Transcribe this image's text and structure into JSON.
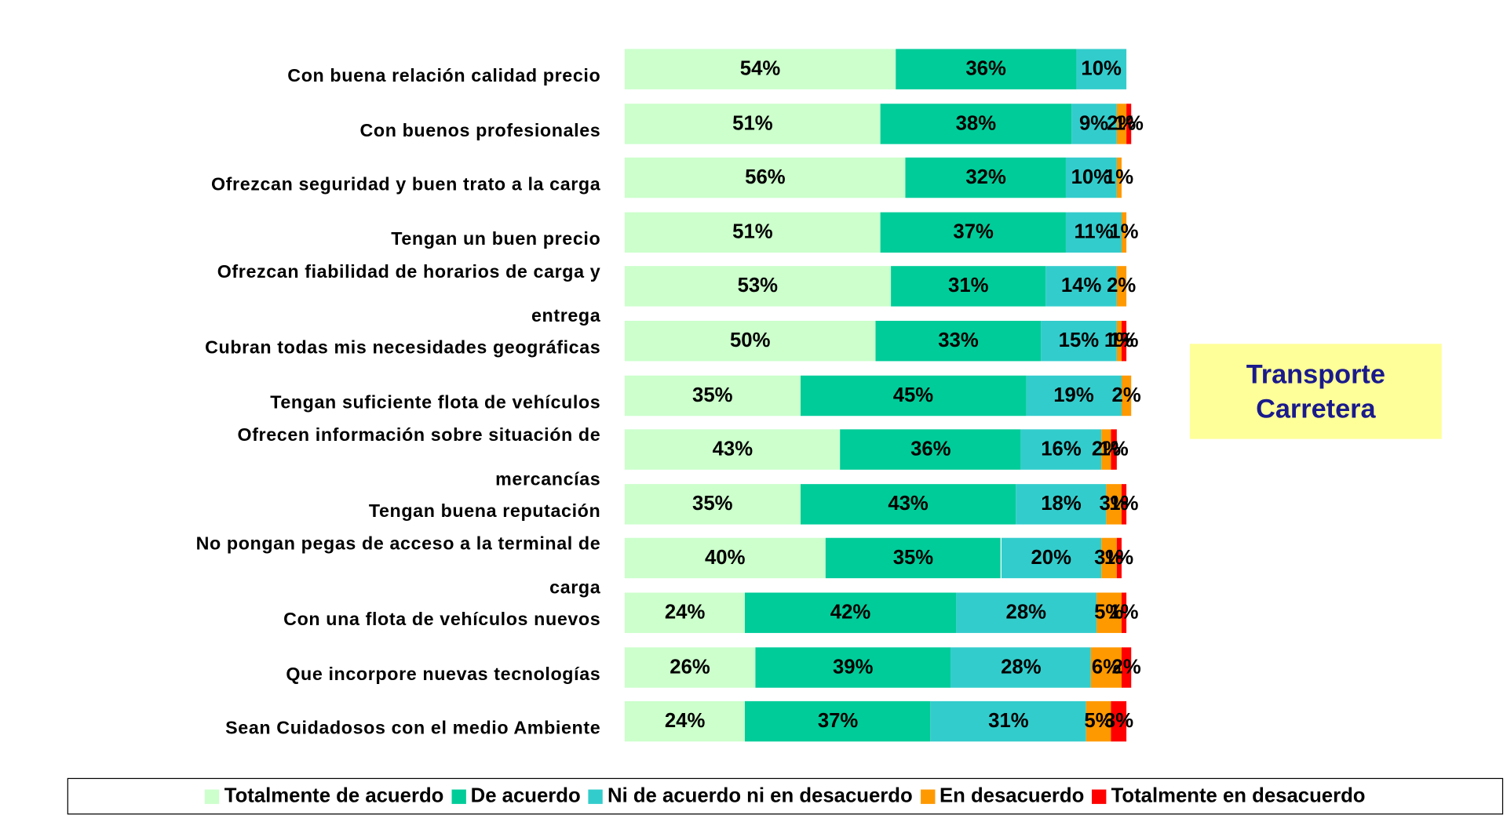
{
  "chart_data": {
    "type": "stacked-bar-horizontal",
    "annotation": "Transporte\nCarretera",
    "categories": [
      "Con buena relación calidad precio",
      "Con buenos profesionales",
      "Ofrezcan seguridad y buen trato a la carga",
      "Tengan un buen precio ",
      "Ofrezcan fiabilidad de horarios de carga y\nentrega",
      "Cubran todas mis necesidades geográficas",
      "Tengan suficiente flota de vehículos",
      "Ofrecen información sobre situación de\nmercancías",
      "Tengan buena reputación",
      "No pongan pegas de acceso a la terminal de\ncarga",
      "Con una flota de vehículos nuevos",
      "Que incorpore nuevas tecnologías",
      "Sean Cuidadosos con el medio Ambiente"
    ],
    "series": [
      {
        "name": "Totalmente de acuerdo",
        "color": "#ccffcc",
        "values": [
          54,
          51,
          56,
          51,
          53,
          50,
          35,
          43,
          35,
          40,
          24,
          26,
          24
        ],
        "value_labels": [
          "54%",
          "51%",
          "56%",
          "51%",
          "53%",
          "50%",
          "35%",
          "43%",
          "35%",
          "40%",
          "24%",
          "26%",
          "24%"
        ]
      },
      {
        "name": "De acuerdo",
        "color": "#00cc99",
        "values": [
          36,
          38,
          32,
          37,
          31,
          33,
          45,
          36,
          43,
          35,
          42,
          39,
          37
        ],
        "value_labels": [
          "36%",
          "38%",
          "32%",
          "37%",
          "31%",
          "33%",
          "45%",
          "36%",
          "43%",
          "35%",
          "42%",
          "39%",
          "37%"
        ]
      },
      {
        "name": "Ni de acuerdo ni en desacuerdo",
        "color": "#33cccc",
        "values": [
          10,
          9,
          10,
          11,
          14,
          15,
          19,
          16,
          18,
          20,
          28,
          28,
          31
        ],
        "value_labels": [
          "10%",
          "9%",
          "10%",
          "11%",
          "14%",
          "15%",
          "19%",
          "16%",
          "18%",
          "20%",
          "28%",
          "28%",
          "31%"
        ]
      },
      {
        "name": "En desacuerdo",
        "color": "#ff9900",
        "values": [
          null,
          2,
          1,
          1,
          2,
          1,
          2,
          2,
          3,
          3,
          5,
          6,
          5
        ],
        "value_labels": [
          null,
          "2%",
          "1%",
          "1%",
          "2%",
          "1%",
          "2%",
          "2%",
          "3%",
          "3%",
          "5%",
          "6%",
          "5%"
        ]
      },
      {
        "name": "Totalmente en desacuerdo",
        "color": "#ff0000",
        "values": [
          null,
          1,
          null,
          null,
          null,
          1,
          null,
          1,
          1,
          1,
          1,
          2,
          3
        ],
        "value_labels": [
          null,
          "1%",
          null,
          null,
          null,
          "1%",
          null,
          "1%",
          "1%",
          "1%",
          "1%",
          "2%",
          "3%"
        ]
      }
    ],
    "legend": "bottom"
  }
}
